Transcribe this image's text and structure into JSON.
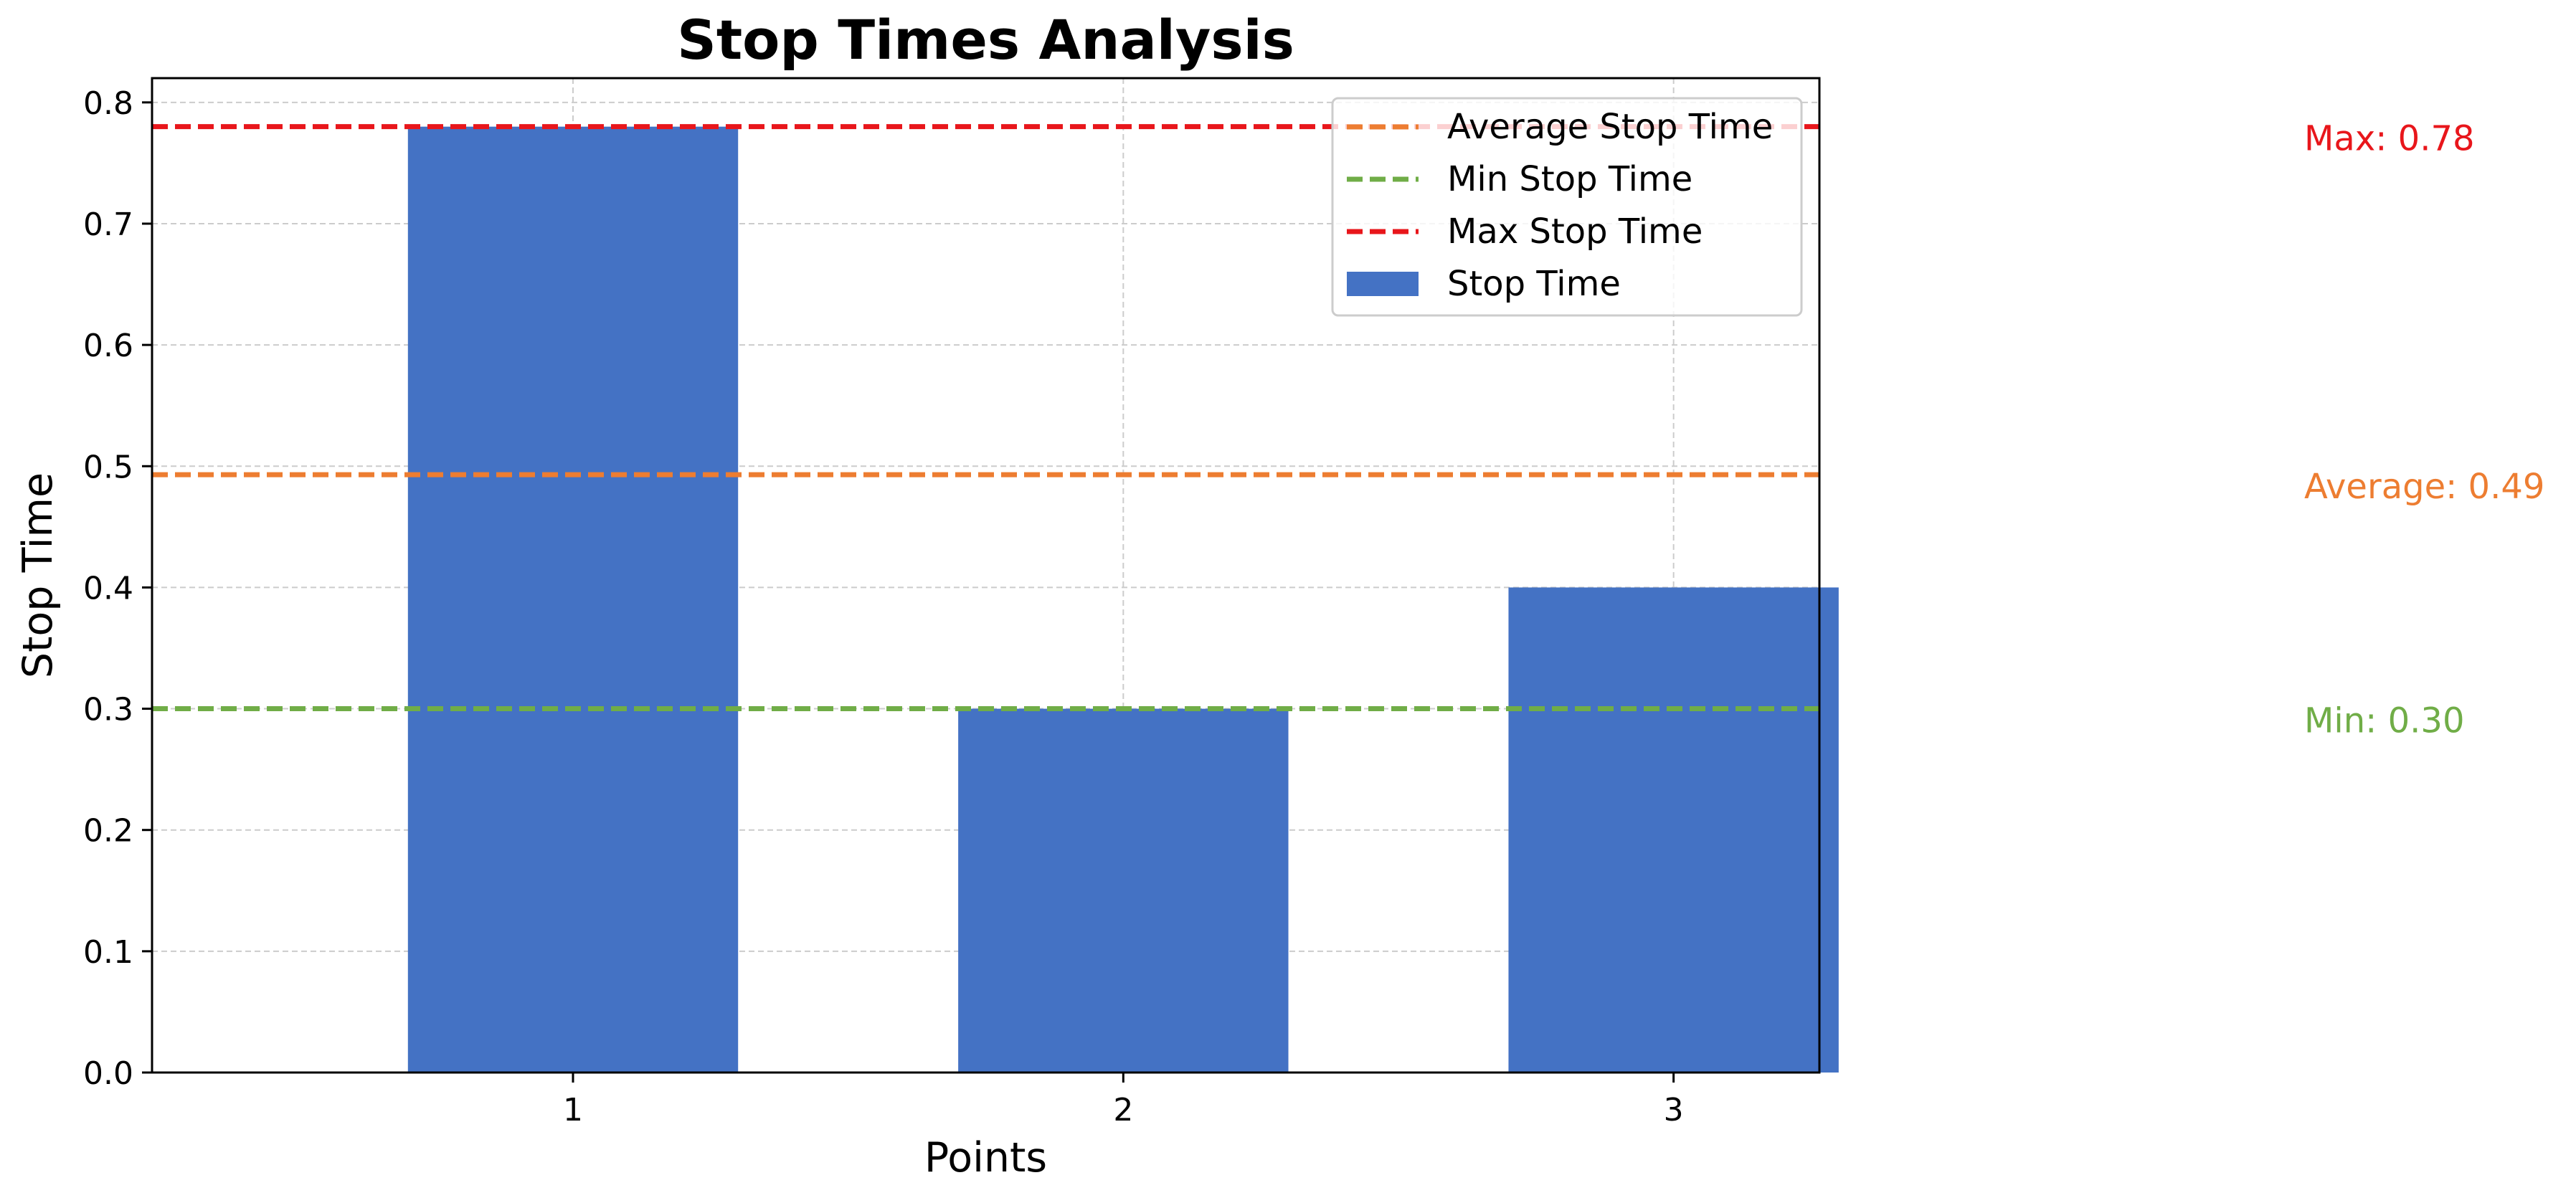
{
  "chart_data": {
    "type": "bar",
    "title": "Stop Times Analysis",
    "xlabel": "Points",
    "ylabel": "Stop Time",
    "categories": [
      "1",
      "2",
      "3"
    ],
    "series": [
      {
        "name": "Stop Time",
        "values": [
          0.78,
          0.3,
          0.4
        ],
        "color": "#4472c4"
      }
    ],
    "ylim": [
      0,
      0.82
    ],
    "yticks": [
      "0.0",
      "0.1",
      "0.2",
      "0.3",
      "0.4",
      "0.5",
      "0.6",
      "0.7",
      "0.8"
    ],
    "grid": true,
    "legend_position": "top-right",
    "reference_lines": [
      {
        "name": "Average Stop Time",
        "value": 0.493,
        "color": "#ed7d31",
        "annotation": "Average: 0.49"
      },
      {
        "name": "Min Stop Time",
        "value": 0.3,
        "color": "#70ad47",
        "annotation": "Min: 0.30"
      },
      {
        "name": "Max Stop Time",
        "value": 0.78,
        "color": "#e8161b",
        "annotation": "Max: 0.78"
      }
    ]
  }
}
